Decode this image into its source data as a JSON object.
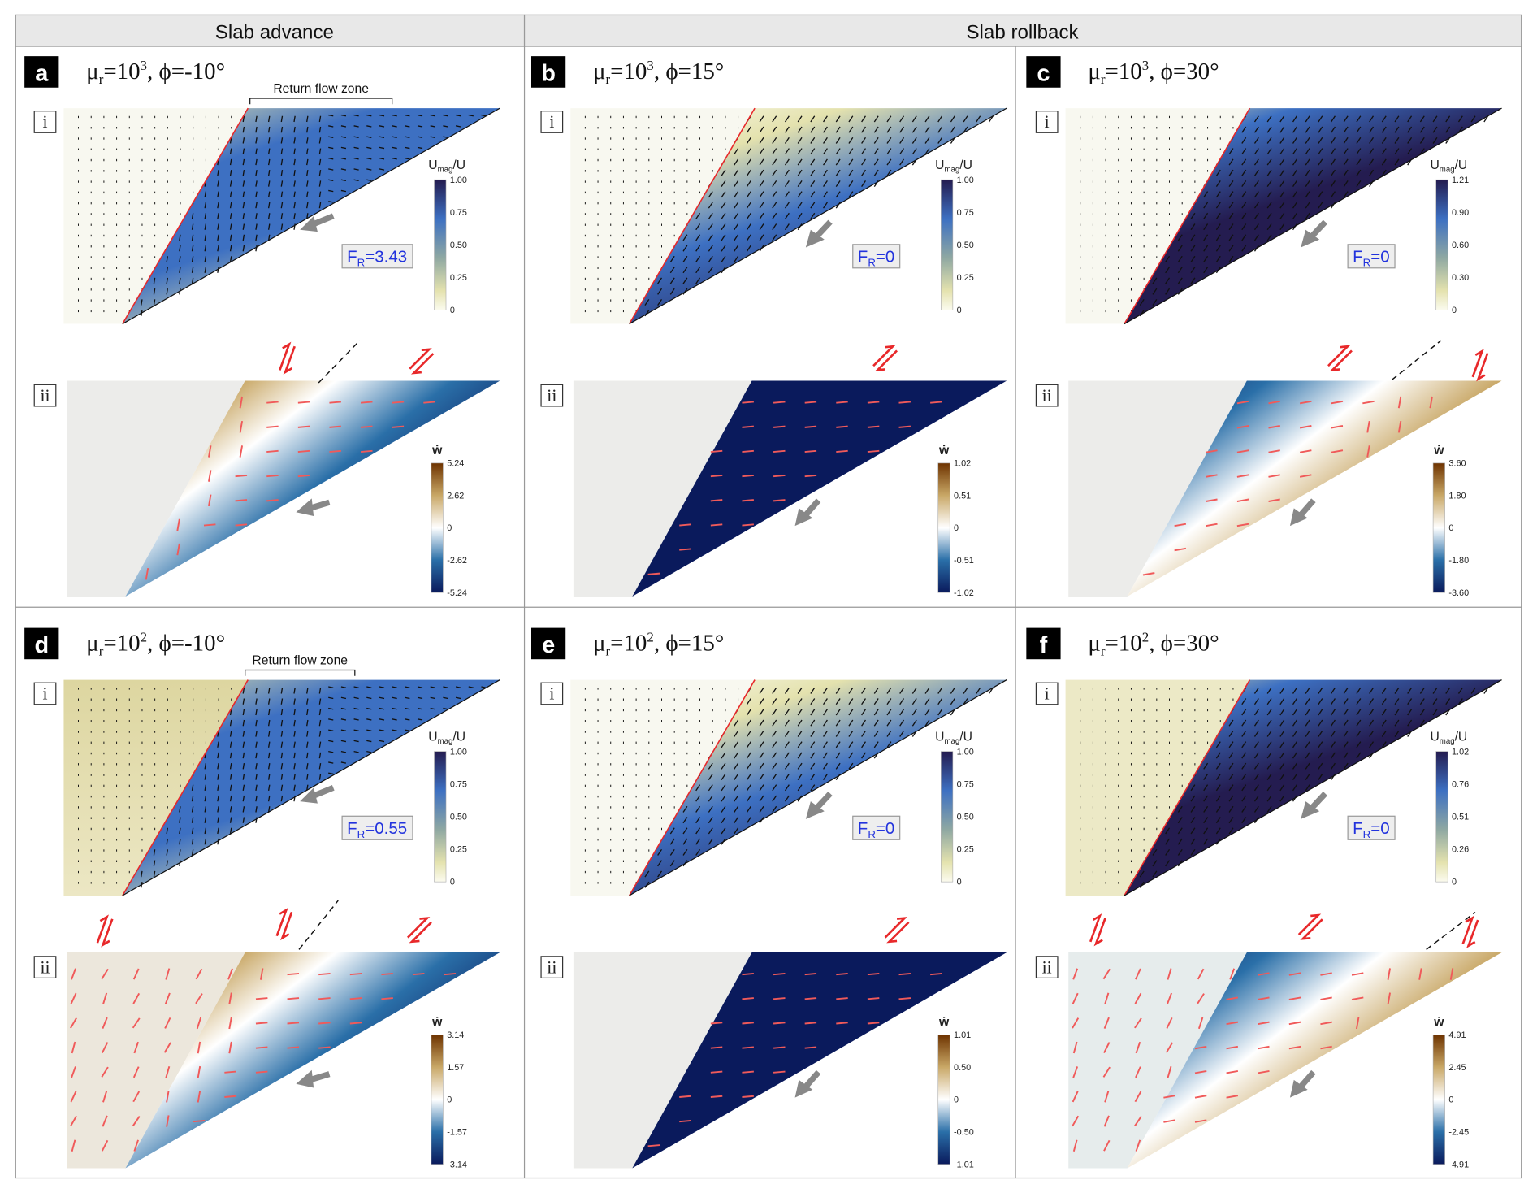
{
  "headers": {
    "advance": "Slab advance",
    "rollback": "Slab rollback"
  },
  "sublabels": {
    "i": "i",
    "ii": "ii"
  },
  "colorbar_labels": {
    "velocity_main": "U",
    "velocity_sub": "mag",
    "velocity_tail": "/U",
    "vorticity": "ẇ"
  },
  "fr_symbol": {
    "main": "F",
    "sub": "R"
  },
  "annotation": "Return flow zone",
  "colors": {
    "velocity_map": [
      "#fbfbef",
      "#e4e2ae",
      "#8fa8a2",
      "#3d70c2",
      "#241c50"
    ],
    "vorticity_map": [
      "#0a1a5c",
      "#2a6fa8",
      "#ffffff",
      "#c9a867",
      "#6e3300"
    ],
    "shear_arrow": "#e8282a",
    "fr_text": "#2233dd"
  },
  "panels": [
    {
      "label": "a",
      "mu": "μ",
      "mu_sub": "r",
      "eq": "=10",
      "exp": "3",
      "phi": ", ϕ=-10°",
      "fr_value": "=3.43",
      "ticks_i": [
        "1.00",
        "0.75",
        "0.50",
        "0.25",
        "0"
      ],
      "ticks_ii": [
        "5.24",
        "2.62",
        "0",
        "-2.62",
        "-5.24"
      ],
      "has_annotation": true
    },
    {
      "label": "b",
      "mu": "μ",
      "mu_sub": "r",
      "eq": "=10",
      "exp": "3",
      "phi": ", ϕ=15°",
      "fr_value": "=0",
      "ticks_i": [
        "1.00",
        "0.75",
        "0.50",
        "0.25",
        "0"
      ],
      "ticks_ii": [
        "1.02",
        "0.51",
        "0",
        "-0.51",
        "-1.02"
      ],
      "has_annotation": false
    },
    {
      "label": "c",
      "mu": "μ",
      "mu_sub": "r",
      "eq": "=10",
      "exp": "3",
      "phi": ", ϕ=30°",
      "fr_value": "=0",
      "ticks_i": [
        "1.21",
        "0.90",
        "0.60",
        "0.30",
        "0"
      ],
      "ticks_ii": [
        "3.60",
        "1.80",
        "0",
        "-1.80",
        "-3.60"
      ],
      "has_annotation": false
    },
    {
      "label": "d",
      "mu": "μ",
      "mu_sub": "r",
      "eq": "=10",
      "exp": "2",
      "phi": ", ϕ=-10°",
      "fr_value": "=0.55",
      "ticks_i": [
        "1.00",
        "0.75",
        "0.50",
        "0.25",
        "0"
      ],
      "ticks_ii": [
        "3.14",
        "1.57",
        "0",
        "-1.57",
        "-3.14"
      ],
      "has_annotation": true
    },
    {
      "label": "e",
      "mu": "μ",
      "mu_sub": "r",
      "eq": "=10",
      "exp": "2",
      "phi": ", ϕ=15°",
      "fr_value": "=0",
      "ticks_i": [
        "1.00",
        "0.75",
        "0.50",
        "0.25",
        "0"
      ],
      "ticks_ii": [
        "1.01",
        "0.50",
        "0",
        "-0.50",
        "-1.01"
      ],
      "has_annotation": false
    },
    {
      "label": "f",
      "mu": "μ",
      "mu_sub": "r",
      "eq": "=10",
      "exp": "2",
      "phi": ", ϕ=30°",
      "fr_value": "=0",
      "ticks_i": [
        "1.02",
        "0.76",
        "0.51",
        "0.26",
        "0"
      ],
      "ticks_ii": [
        "4.91",
        "2.45",
        "0",
        "-2.45",
        "-4.91"
      ],
      "has_annotation": false
    }
  ]
}
